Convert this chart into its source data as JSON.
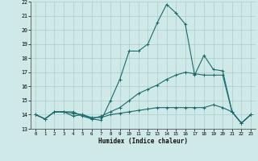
{
  "xlabel": "Humidex (Indice chaleur)",
  "ylabel": "",
  "bg_color": "#cfe8e8",
  "grid_color": "#aacccc",
  "line_color": "#1a6b6b",
  "xlim": [
    -0.5,
    23.5
  ],
  "ylim": [
    13,
    22
  ],
  "xticks": [
    0,
    1,
    2,
    3,
    4,
    5,
    6,
    7,
    8,
    9,
    10,
    11,
    12,
    13,
    14,
    15,
    16,
    17,
    18,
    19,
    20,
    21,
    22,
    23
  ],
  "yticks": [
    13,
    14,
    15,
    16,
    17,
    18,
    19,
    20,
    21,
    22
  ],
  "series1_x": [
    0,
    1,
    2,
    3,
    4,
    5,
    6,
    7,
    8,
    9,
    10,
    11,
    12,
    13,
    14,
    15,
    16,
    17,
    18,
    19,
    20,
    21,
    22,
    23
  ],
  "series1_y": [
    14.0,
    13.7,
    14.2,
    14.2,
    14.2,
    13.9,
    13.7,
    13.6,
    15.0,
    16.5,
    18.5,
    18.5,
    19.0,
    20.5,
    21.8,
    21.2,
    20.4,
    16.8,
    18.2,
    17.2,
    17.1,
    14.2,
    13.4,
    14.0
  ],
  "series2_x": [
    0,
    1,
    2,
    3,
    4,
    5,
    6,
    7,
    8,
    9,
    10,
    11,
    12,
    13,
    14,
    15,
    16,
    17,
    18,
    19,
    20,
    21,
    22,
    23
  ],
  "series2_y": [
    14.0,
    13.7,
    14.2,
    14.2,
    13.9,
    14.0,
    13.7,
    13.9,
    14.2,
    14.5,
    15.0,
    15.5,
    15.8,
    16.1,
    16.5,
    16.8,
    17.0,
    16.9,
    16.8,
    16.8,
    16.8,
    14.2,
    13.4,
    14.0
  ],
  "series3_x": [
    0,
    1,
    2,
    3,
    4,
    5,
    6,
    7,
    8,
    9,
    10,
    11,
    12,
    13,
    14,
    15,
    16,
    17,
    18,
    19,
    20,
    21,
    22,
    23
  ],
  "series3_y": [
    14.0,
    13.7,
    14.2,
    14.2,
    14.1,
    14.0,
    13.8,
    13.8,
    14.0,
    14.1,
    14.2,
    14.3,
    14.4,
    14.5,
    14.5,
    14.5,
    14.5,
    14.5,
    14.5,
    14.7,
    14.5,
    14.2,
    13.4,
    14.0
  ]
}
